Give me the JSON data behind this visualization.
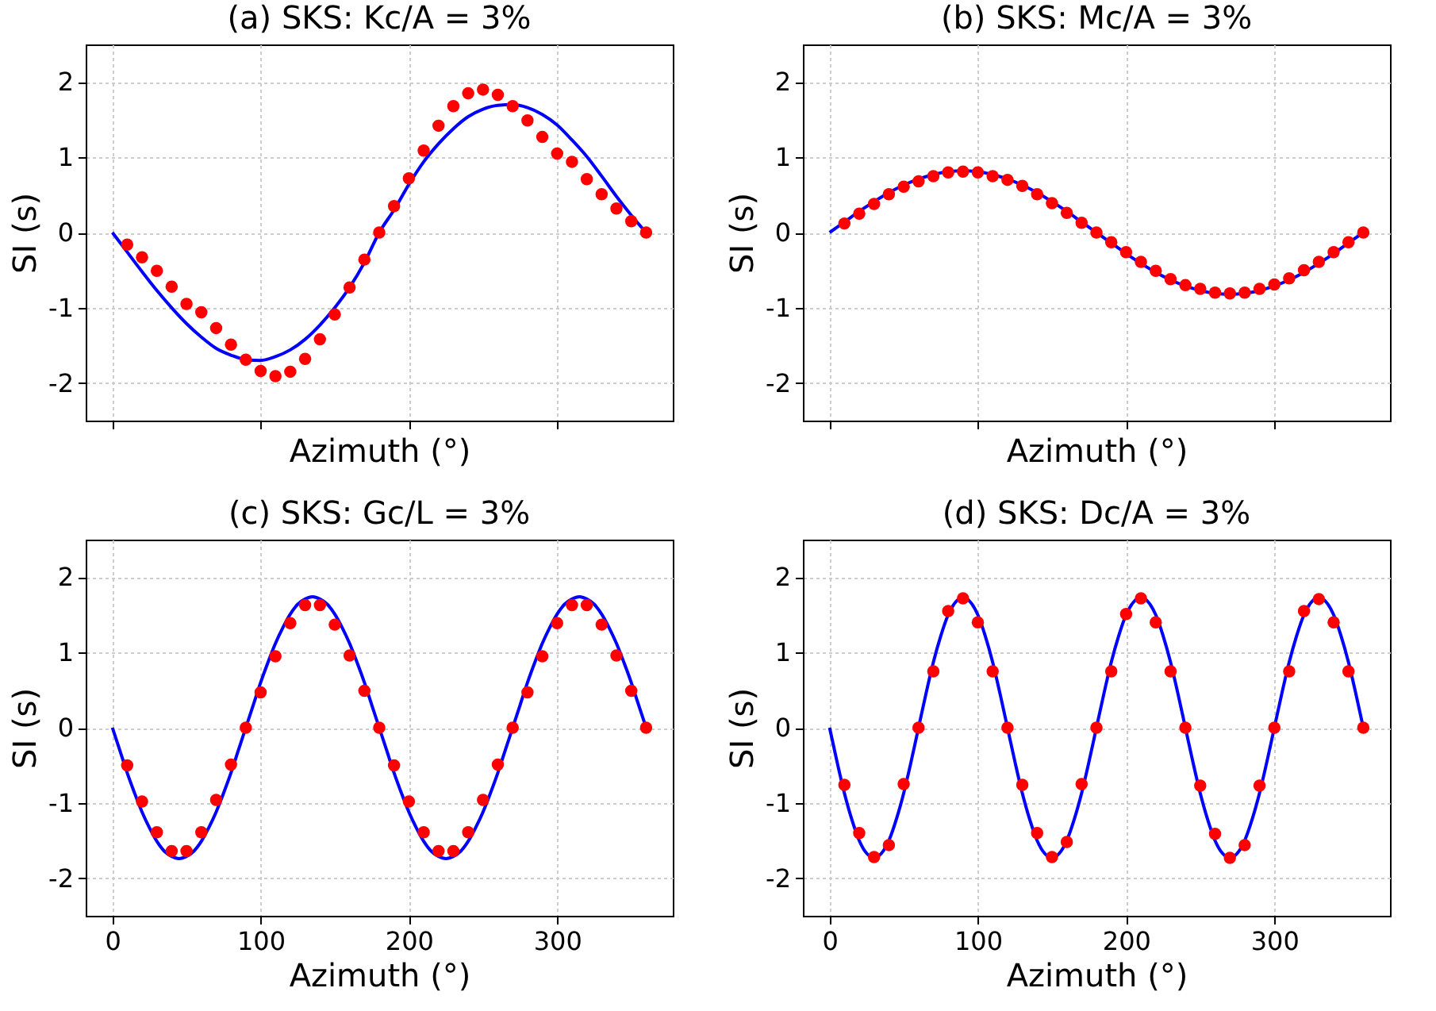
{
  "chart_data": [
    {
      "type": "line",
      "title": "(a) SKS: Kc/A = 3%",
      "xlabel": "Azimuth (°)",
      "ylabel": "SI (s)",
      "xlim": [
        -18,
        378
      ],
      "xticks": [
        0,
        100,
        200,
        300
      ],
      "ylim": [
        -2.5,
        2.5
      ],
      "yticks": [
        -2,
        -1,
        0,
        1,
        2
      ],
      "grid": true,
      "tick_labels": "y",
      "series": [
        {
          "type": "line",
          "color": "#0000ff",
          "line_style": "solid",
          "x": [
            0,
            10,
            20,
            30,
            40,
            50,
            60,
            70,
            80,
            90,
            100,
            110,
            120,
            130,
            140,
            150,
            160,
            170,
            180,
            190,
            200,
            210,
            220,
            230,
            240,
            250,
            260,
            270,
            280,
            290,
            300,
            310,
            320,
            330,
            340,
            350,
            360
          ],
          "values": [
            0,
            -0.26,
            -0.52,
            -0.77,
            -1.0,
            -1.21,
            -1.39,
            -1.54,
            -1.63,
            -1.69,
            -1.7,
            -1.65,
            -1.56,
            -1.42,
            -1.23,
            -1.0,
            -0.73,
            -0.4,
            0,
            0.3,
            0.64,
            0.94,
            1.18,
            1.38,
            1.54,
            1.64,
            1.69,
            1.7,
            1.66,
            1.57,
            1.43,
            1.23,
            1.01,
            0.75,
            0.48,
            0.23,
            0
          ]
        },
        {
          "type": "scatter",
          "color": "#ff0000",
          "marker": "circle",
          "x": [
            10,
            20,
            30,
            40,
            50,
            60,
            70,
            80,
            90,
            100,
            110,
            120,
            130,
            140,
            150,
            160,
            170,
            180,
            190,
            200,
            210,
            220,
            230,
            240,
            250,
            260,
            270,
            280,
            290,
            300,
            310,
            320,
            330,
            340,
            350,
            360
          ],
          "values": [
            -0.16,
            -0.33,
            -0.51,
            -0.72,
            -0.95,
            -1.06,
            -1.27,
            -1.49,
            -1.69,
            -1.84,
            -1.91,
            -1.85,
            -1.68,
            -1.42,
            -1.09,
            -0.73,
            -0.36,
            0,
            0.35,
            0.72,
            1.09,
            1.42,
            1.68,
            1.85,
            1.9,
            1.83,
            1.68,
            1.49,
            1.27,
            1.05,
            0.94,
            0.71,
            0.51,
            0.32,
            0.15,
            0
          ]
        }
      ]
    },
    {
      "type": "line",
      "title": "(b) SKS: Mc/A = 3%",
      "xlabel": "Azimuth (°)",
      "ylabel": "SI (s)",
      "xlim": [
        -18,
        378
      ],
      "xticks": [
        0,
        100,
        200,
        300
      ],
      "ylim": [
        -2.5,
        2.5
      ],
      "yticks": [
        -2,
        -1,
        0,
        1,
        2
      ],
      "grid": true,
      "tick_labels": "y",
      "series": [
        {
          "type": "line",
          "color": "#0000ff",
          "line_style": "solid",
          "x": [
            0,
            10,
            20,
            30,
            40,
            50,
            60,
            70,
            80,
            90,
            100,
            110,
            120,
            130,
            140,
            150,
            160,
            170,
            180,
            190,
            200,
            210,
            220,
            230,
            240,
            250,
            260,
            270,
            280,
            290,
            300,
            310,
            320,
            330,
            340,
            350,
            360
          ],
          "values": [
            0,
            0.14,
            0.28,
            0.41,
            0.53,
            0.63,
            0.71,
            0.77,
            0.81,
            0.82,
            0.81,
            0.77,
            0.71,
            0.63,
            0.53,
            0.41,
            0.28,
            0.14,
            0,
            -0.14,
            -0.28,
            -0.41,
            -0.53,
            -0.63,
            -0.71,
            -0.77,
            -0.81,
            -0.82,
            -0.81,
            -0.77,
            -0.71,
            -0.63,
            -0.53,
            -0.41,
            -0.28,
            -0.14,
            0
          ]
        },
        {
          "type": "scatter",
          "color": "#ff0000",
          "marker": "circle",
          "x": [
            10,
            20,
            30,
            40,
            50,
            60,
            70,
            80,
            90,
            100,
            110,
            120,
            130,
            140,
            150,
            160,
            170,
            180,
            190,
            200,
            210,
            220,
            230,
            240,
            250,
            260,
            270,
            280,
            290,
            300,
            310,
            320,
            330,
            340,
            350,
            360
          ],
          "values": [
            0.12,
            0.25,
            0.38,
            0.51,
            0.61,
            0.68,
            0.75,
            0.8,
            0.81,
            0.8,
            0.75,
            0.7,
            0.62,
            0.51,
            0.39,
            0.26,
            0.13,
            0,
            -0.13,
            -0.26,
            -0.39,
            -0.51,
            -0.62,
            -0.7,
            -0.75,
            -0.8,
            -0.81,
            -0.8,
            -0.75,
            -0.69,
            -0.61,
            -0.5,
            -0.39,
            -0.26,
            -0.13,
            0
          ]
        }
      ]
    },
    {
      "type": "line",
      "title": "(c) SKS: Gc/L = 3%",
      "xlabel": "Azimuth (°)",
      "ylabel": "SI (s)",
      "xlim": [
        -18,
        378
      ],
      "xticks": [
        0,
        100,
        200,
        300
      ],
      "ylim": [
        -2.5,
        2.5
      ],
      "yticks": [
        -2,
        -1,
        0,
        1,
        2
      ],
      "grid": true,
      "series": [
        {
          "type": "line",
          "color": "#0000ff",
          "line_style": "solid",
          "x": [
            0,
            5,
            10,
            15,
            20,
            25,
            30,
            35,
            40,
            45,
            50,
            55,
            60,
            65,
            70,
            75,
            80,
            85,
            90,
            95,
            100,
            105,
            110,
            115,
            120,
            125,
            130,
            135,
            140,
            145,
            150,
            155,
            160,
            165,
            170,
            175,
            180,
            185,
            190,
            195,
            200,
            205,
            210,
            215,
            220,
            225,
            230,
            235,
            240,
            245,
            250,
            255,
            260,
            265,
            270,
            275,
            280,
            285,
            290,
            295,
            300,
            305,
            310,
            315,
            320,
            325,
            330,
            335,
            340,
            345,
            350,
            355,
            360
          ],
          "values": [
            0,
            -0.3,
            -0.6,
            -0.87,
            -1.12,
            -1.33,
            -1.51,
            -1.64,
            -1.71,
            -1.74,
            -1.71,
            -1.64,
            -1.51,
            -1.33,
            -1.12,
            -0.87,
            -0.6,
            -0.3,
            0,
            0.3,
            0.6,
            0.87,
            1.12,
            1.33,
            1.51,
            1.64,
            1.71,
            1.74,
            1.71,
            1.64,
            1.51,
            1.33,
            1.12,
            0.87,
            0.6,
            0.3,
            0,
            -0.3,
            -0.6,
            -0.87,
            -1.12,
            -1.33,
            -1.51,
            -1.64,
            -1.71,
            -1.74,
            -1.71,
            -1.64,
            -1.51,
            -1.33,
            -1.12,
            -0.87,
            -0.6,
            -0.3,
            0,
            0.3,
            0.6,
            0.87,
            1.12,
            1.33,
            1.51,
            1.64,
            1.71,
            1.74,
            1.71,
            1.64,
            1.51,
            1.33,
            1.12,
            0.87,
            0.6,
            0.3,
            0
          ]
        },
        {
          "type": "scatter",
          "color": "#ff0000",
          "marker": "circle",
          "x": [
            10,
            20,
            30,
            40,
            50,
            60,
            70,
            80,
            90,
            100,
            110,
            120,
            130,
            140,
            150,
            160,
            170,
            180,
            190,
            200,
            210,
            220,
            230,
            240,
            250,
            260,
            270,
            280,
            290,
            300,
            310,
            320,
            330,
            340,
            350,
            360
          ],
          "values": [
            -0.5,
            -0.98,
            -1.39,
            -1.64,
            -1.64,
            -1.39,
            -0.96,
            -0.49,
            0,
            0.47,
            0.95,
            1.39,
            1.63,
            1.63,
            1.37,
            0.96,
            0.49,
            0,
            -0.5,
            -0.98,
            -1.39,
            -1.64,
            -1.64,
            -1.39,
            -0.96,
            -0.49,
            0,
            0.47,
            0.95,
            1.39,
            1.63,
            1.63,
            1.37,
            0.96,
            0.49,
            0
          ]
        }
      ]
    },
    {
      "type": "line",
      "title": "(d) SKS: Dc/A = 3%",
      "xlabel": "Azimuth (°)",
      "ylabel": "SI (s)",
      "xlim": [
        -18,
        378
      ],
      "xticks": [
        0,
        100,
        200,
        300
      ],
      "ylim": [
        -2.5,
        2.5
      ],
      "yticks": [
        -2,
        -1,
        0,
        1,
        2
      ],
      "grid": true,
      "series": [
        {
          "type": "line",
          "color": "#0000ff",
          "line_style": "solid",
          "x": [
            0,
            5,
            10,
            15,
            20,
            25,
            30,
            35,
            40,
            45,
            50,
            55,
            60,
            65,
            70,
            75,
            80,
            85,
            90,
            95,
            100,
            105,
            110,
            115,
            120,
            125,
            130,
            135,
            140,
            145,
            150,
            155,
            160,
            165,
            170,
            175,
            180,
            185,
            190,
            195,
            200,
            205,
            210,
            215,
            220,
            225,
            230,
            235,
            240,
            245,
            250,
            255,
            260,
            265,
            270,
            275,
            280,
            285,
            290,
            295,
            300,
            305,
            310,
            315,
            320,
            325,
            330,
            335,
            340,
            345,
            350,
            355,
            360
          ],
          "values": [
            0,
            -0.45,
            -0.87,
            -1.22,
            -1.5,
            -1.67,
            -1.73,
            -1.67,
            -1.5,
            -1.22,
            -0.87,
            -0.45,
            0,
            0.45,
            0.87,
            1.22,
            1.5,
            1.67,
            1.73,
            1.67,
            1.5,
            1.22,
            0.87,
            0.45,
            0,
            -0.45,
            -0.87,
            -1.22,
            -1.5,
            -1.67,
            -1.73,
            -1.67,
            -1.5,
            -1.22,
            -0.87,
            -0.45,
            0,
            0.45,
            0.87,
            1.22,
            1.5,
            1.67,
            1.73,
            1.67,
            1.5,
            1.22,
            0.87,
            0.45,
            0,
            -0.45,
            -0.87,
            -1.22,
            -1.5,
            -1.67,
            -1.73,
            -1.67,
            -1.5,
            -1.22,
            -0.87,
            -0.45,
            0,
            0.45,
            0.87,
            1.22,
            1.5,
            1.67,
            1.73,
            1.67,
            1.5,
            1.22,
            0.87,
            0.45,
            0
          ]
        },
        {
          "type": "scatter",
          "color": "#ff0000",
          "marker": "circle",
          "x": [
            10,
            20,
            30,
            40,
            50,
            60,
            70,
            80,
            90,
            100,
            110,
            120,
            130,
            140,
            150,
            160,
            170,
            180,
            190,
            200,
            210,
            220,
            230,
            240,
            250,
            260,
            270,
            280,
            290,
            300,
            310,
            320,
            330,
            340,
            350,
            360
          ],
          "values": [
            -0.76,
            -1.4,
            -1.72,
            -1.56,
            -0.75,
            0,
            0.75,
            1.55,
            1.72,
            1.4,
            0.75,
            0,
            -0.76,
            -1.4,
            -1.72,
            -1.52,
            -0.75,
            0,
            0.75,
            1.51,
            1.72,
            1.4,
            0.75,
            0,
            -0.77,
            -1.41,
            -1.73,
            -1.56,
            -0.77,
            0,
            0.75,
            1.55,
            1.71,
            1.4,
            0.75,
            0
          ]
        }
      ]
    }
  ]
}
